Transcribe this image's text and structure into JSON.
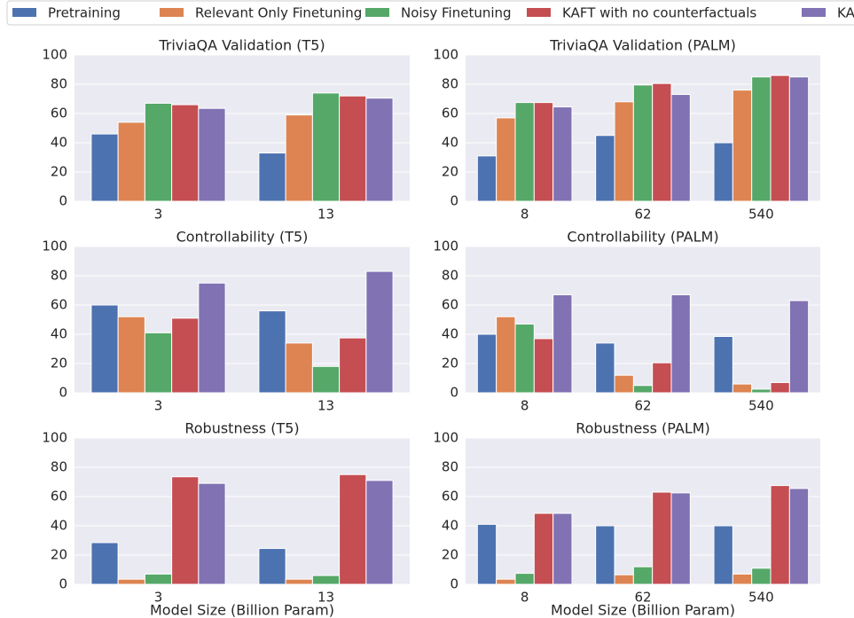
{
  "legend": [
    {
      "name": "Pretraining",
      "color": "#4c72b0"
    },
    {
      "name": "Relevant Only Finetuning",
      "color": "#dd8452"
    },
    {
      "name": "Noisy Finetuning",
      "color": "#55a868"
    },
    {
      "name": "KAFT with no counterfactuals",
      "color": "#c44e52"
    },
    {
      "name": "KAFT",
      "color": "#8172b3"
    }
  ],
  "chart_data": [
    {
      "type": "bar",
      "title": "TriviaQA Validation (T5)",
      "categories": [
        "3",
        "13"
      ],
      "ylim": [
        0,
        100
      ],
      "yticks": [
        0,
        20,
        40,
        60,
        80,
        100
      ],
      "grid": true,
      "series": [
        {
          "values": [
            46,
            33
          ]
        },
        {
          "values": [
            54,
            59
          ]
        },
        {
          "values": [
            67,
            74
          ]
        },
        {
          "values": [
            66,
            72
          ]
        },
        {
          "values": [
            63.5,
            70.5
          ]
        }
      ]
    },
    {
      "type": "bar",
      "title": "TriviaQA Validation (PALM)",
      "categories": [
        "8",
        "62",
        "540"
      ],
      "ylim": [
        0,
        100
      ],
      "yticks": [
        0,
        20,
        40,
        60,
        80,
        100
      ],
      "grid": true,
      "series": [
        {
          "values": [
            31,
            45,
            40
          ]
        },
        {
          "values": [
            57,
            68,
            76
          ]
        },
        {
          "values": [
            67.5,
            79.5,
            85
          ]
        },
        {
          "values": [
            67.5,
            80.5,
            86
          ]
        },
        {
          "values": [
            64.5,
            73,
            85
          ]
        }
      ]
    },
    {
      "type": "bar",
      "title": "Controllability (T5)",
      "categories": [
        "3",
        "13"
      ],
      "ylim": [
        0,
        100
      ],
      "yticks": [
        0,
        20,
        40,
        60,
        80,
        100
      ],
      "grid": true,
      "series": [
        {
          "values": [
            60,
            56
          ]
        },
        {
          "values": [
            52,
            34
          ]
        },
        {
          "values": [
            41,
            18
          ]
        },
        {
          "values": [
            51,
            37.5
          ]
        },
        {
          "values": [
            75,
            83
          ]
        }
      ]
    },
    {
      "type": "bar",
      "title": "Controllability (PALM)",
      "categories": [
        "8",
        "62",
        "540"
      ],
      "ylim": [
        0,
        100
      ],
      "yticks": [
        0,
        20,
        40,
        60,
        80,
        100
      ],
      "grid": true,
      "series": [
        {
          "values": [
            40,
            34,
            38.5
          ]
        },
        {
          "values": [
            52,
            12,
            6
          ]
        },
        {
          "values": [
            47,
            5,
            2.5
          ]
        },
        {
          "values": [
            37,
            20.5,
            7
          ]
        },
        {
          "values": [
            67,
            67,
            63
          ]
        }
      ]
    },
    {
      "type": "bar",
      "title": "Robustness (T5)",
      "categories": [
        "3",
        "13"
      ],
      "xlabel": "Model Size (Billion Param)",
      "ylim": [
        0,
        100
      ],
      "yticks": [
        0,
        20,
        40,
        60,
        80,
        100
      ],
      "grid": true,
      "series": [
        {
          "values": [
            28.5,
            24.5
          ]
        },
        {
          "values": [
            3.5,
            3.5
          ]
        },
        {
          "values": [
            7,
            6
          ]
        },
        {
          "values": [
            73.5,
            75
          ]
        },
        {
          "values": [
            69,
            71
          ]
        }
      ]
    },
    {
      "type": "bar",
      "title": "Robustness (PALM)",
      "categories": [
        "8",
        "62",
        "540"
      ],
      "xlabel": "Model Size (Billion Param)",
      "ylim": [
        0,
        100
      ],
      "yticks": [
        0,
        20,
        40,
        60,
        80,
        100
      ],
      "grid": true,
      "series": [
        {
          "values": [
            41,
            40,
            40
          ]
        },
        {
          "values": [
            3.5,
            6.5,
            7
          ]
        },
        {
          "values": [
            7.5,
            12,
            11
          ]
        },
        {
          "values": [
            48.5,
            63,
            67.5
          ]
        },
        {
          "values": [
            48.5,
            62.5,
            65.5
          ]
        }
      ]
    }
  ]
}
